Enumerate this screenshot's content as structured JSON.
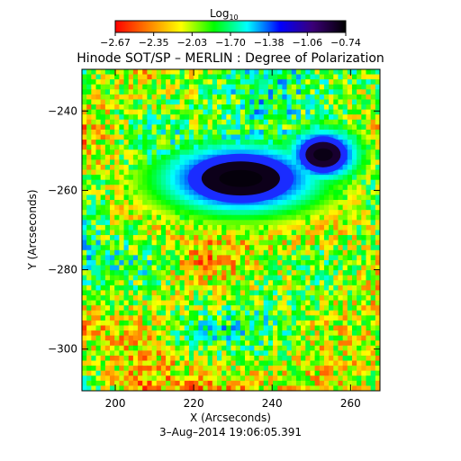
{
  "colorbar": {
    "label_main": "Log",
    "label_sub": "10",
    "ticks": [
      "−2.67",
      "−2.35",
      "−2.03",
      "−1.70",
      "−1.38",
      "−1.06",
      "−0.74"
    ],
    "range": [
      -2.67,
      -0.74
    ],
    "stops": [
      "#ff0000",
      "#ff7f00",
      "#ffff00",
      "#00ff00",
      "#00ffff",
      "#0000ff",
      "#3b0076",
      "#000000"
    ]
  },
  "title": "Hinode SOT/SP – MERLIN : Degree of Polarization",
  "chart_data": {
    "type": "heatmap",
    "title": "Hinode SOT/SP – MERLIN : Degree of Polarization",
    "xlabel": "X (Arcseconds)",
    "ylabel": "Y (Arcseconds)",
    "xlim": [
      191.5,
      267.5
    ],
    "ylim": [
      -310.5,
      -229.5
    ],
    "x_ticks": [
      {
        "value": 200,
        "label": "200"
      },
      {
        "value": 220,
        "label": "220"
      },
      {
        "value": 240,
        "label": "240"
      },
      {
        "value": 260,
        "label": "260"
      }
    ],
    "y_ticks": [
      {
        "value": -240,
        "label": "−240"
      },
      {
        "value": -260,
        "label": "−260"
      },
      {
        "value": -280,
        "label": "−280"
      },
      {
        "value": -300,
        "label": "−300"
      }
    ],
    "value_range_log10": [
      -2.67,
      -0.74
    ],
    "features": [
      {
        "name": "main-umbra",
        "x": 232,
        "y": -257,
        "rx": 10,
        "ry": 4.3,
        "value": -0.8
      },
      {
        "name": "secondary-pore",
        "x": 253,
        "y": -251,
        "rx": 4.5,
        "ry": 3.2,
        "value": -0.85
      }
    ]
  },
  "footer": {
    "timestamp": "3–Aug–2014 19:06:05.391"
  }
}
